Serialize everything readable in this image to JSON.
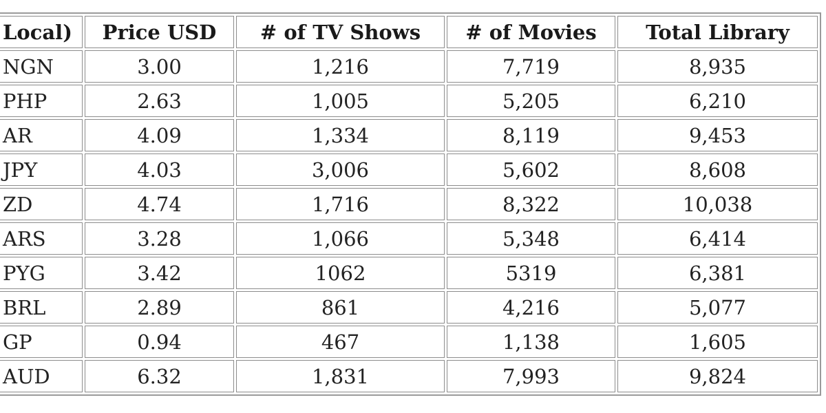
{
  "table": {
    "header": [
      "Local)",
      "Price USD",
      "# of TV Shows",
      "# of Movies",
      "Total Library"
    ],
    "rows": [
      [
        "NGN",
        "3.00",
        "1,216",
        "7,719",
        "8,935"
      ],
      [
        "PHP",
        "2.63",
        "1,005",
        "5,205",
        "6,210"
      ],
      [
        "AR",
        "4.09",
        "1,334",
        "8,119",
        "9,453"
      ],
      [
        "JPY",
        "4.03",
        "3,006",
        "5,602",
        "8,608"
      ],
      [
        "ZD",
        "4.74",
        "1,716",
        "8,322",
        "10,038"
      ],
      [
        "ARS",
        "3.28",
        "1,066",
        "5,348",
        "6,414"
      ],
      [
        "PYG",
        "3.42",
        "1062",
        "5319",
        "6,381"
      ],
      [
        "BRL",
        "2.89",
        "861",
        "4,216",
        "5,077"
      ],
      [
        "GP",
        "0.94",
        "467",
        "1,138",
        "1,605"
      ],
      [
        "AUD",
        "6.32",
        "1,831",
        "7,993",
        "9,824"
      ]
    ]
  }
}
